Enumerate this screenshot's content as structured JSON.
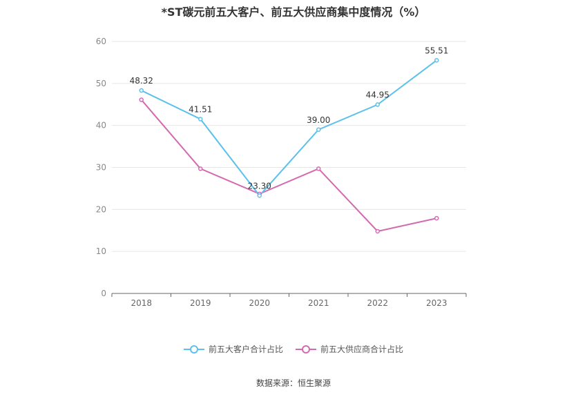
{
  "title": "*ST碳元前五大客户、前五大供应商集中度情况（%）",
  "source": "数据来源：恒生聚源",
  "chart_data": {
    "type": "line",
    "title": "*ST碳元前五大客户、前五大供应商集中度情况（%）",
    "xlabel": "",
    "ylabel": "",
    "categories": [
      "2018",
      "2019",
      "2020",
      "2021",
      "2022",
      "2023"
    ],
    "ylim": [
      0,
      60
    ],
    "yticks": [
      0,
      10,
      20,
      30,
      40,
      50,
      60
    ],
    "grid": true,
    "legend_position": "bottom",
    "series": [
      {
        "name": "前五大客户合计占比",
        "values": [
          48.32,
          41.51,
          23.3,
          39.0,
          44.95,
          55.51
        ],
        "labels": [
          "48.32",
          "41.51",
          "23.30",
          "39.00",
          "44.95",
          "55.51"
        ],
        "color": "#5bc0eb"
      },
      {
        "name": "前五大供应商合计占比",
        "values": [
          46.1,
          29.7,
          23.7,
          29.7,
          14.8,
          17.9
        ],
        "color": "#d36ab0"
      }
    ]
  }
}
